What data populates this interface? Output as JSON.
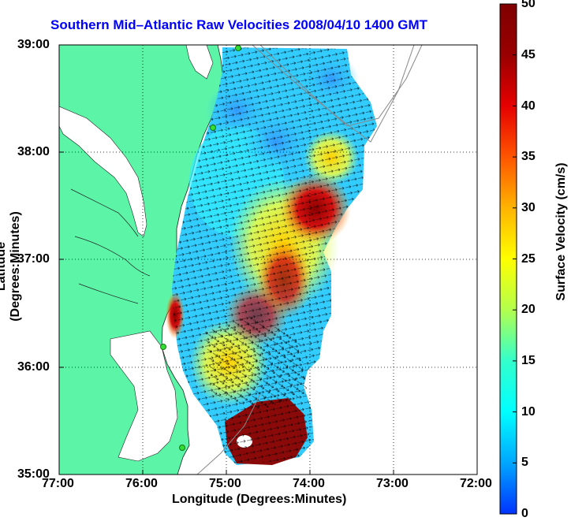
{
  "title": "Southern Mid–Atlantic Raw Velocities 2008/04/10 1400 GMT",
  "x_axis": {
    "label": "Longitude (Degrees:Minutes)",
    "ticks": [
      "77:00",
      "76:00",
      "75:00",
      "74:00",
      "73:00",
      "72:00"
    ],
    "range_deg_west": [
      77,
      72
    ]
  },
  "y_axis": {
    "label": "Latitude (Degrees:Minutes)",
    "ticks": [
      "39:00",
      "38:00",
      "37:00",
      "36:00",
      "35:00"
    ],
    "range_deg_north": [
      35,
      39
    ]
  },
  "colorbar": {
    "label": "Surface Velocity (cm/s)",
    "ticks": [
      "50",
      "45",
      "40",
      "35",
      "30",
      "25",
      "20",
      "15",
      "10",
      "5",
      "0"
    ],
    "range": [
      0,
      50
    ],
    "colors": [
      "#0033ff",
      "#00a6ff",
      "#00ffff",
      "#33ffcc",
      "#b3ff4d",
      "#ffff00",
      "#ffb300",
      "#ff5500",
      "#e60000",
      "#990000",
      "#800000"
    ]
  },
  "colors": {
    "land": "#5cf5a8",
    "ocean": "#ffffff",
    "title": "#0000ff",
    "station": "#33dd33"
  }
}
